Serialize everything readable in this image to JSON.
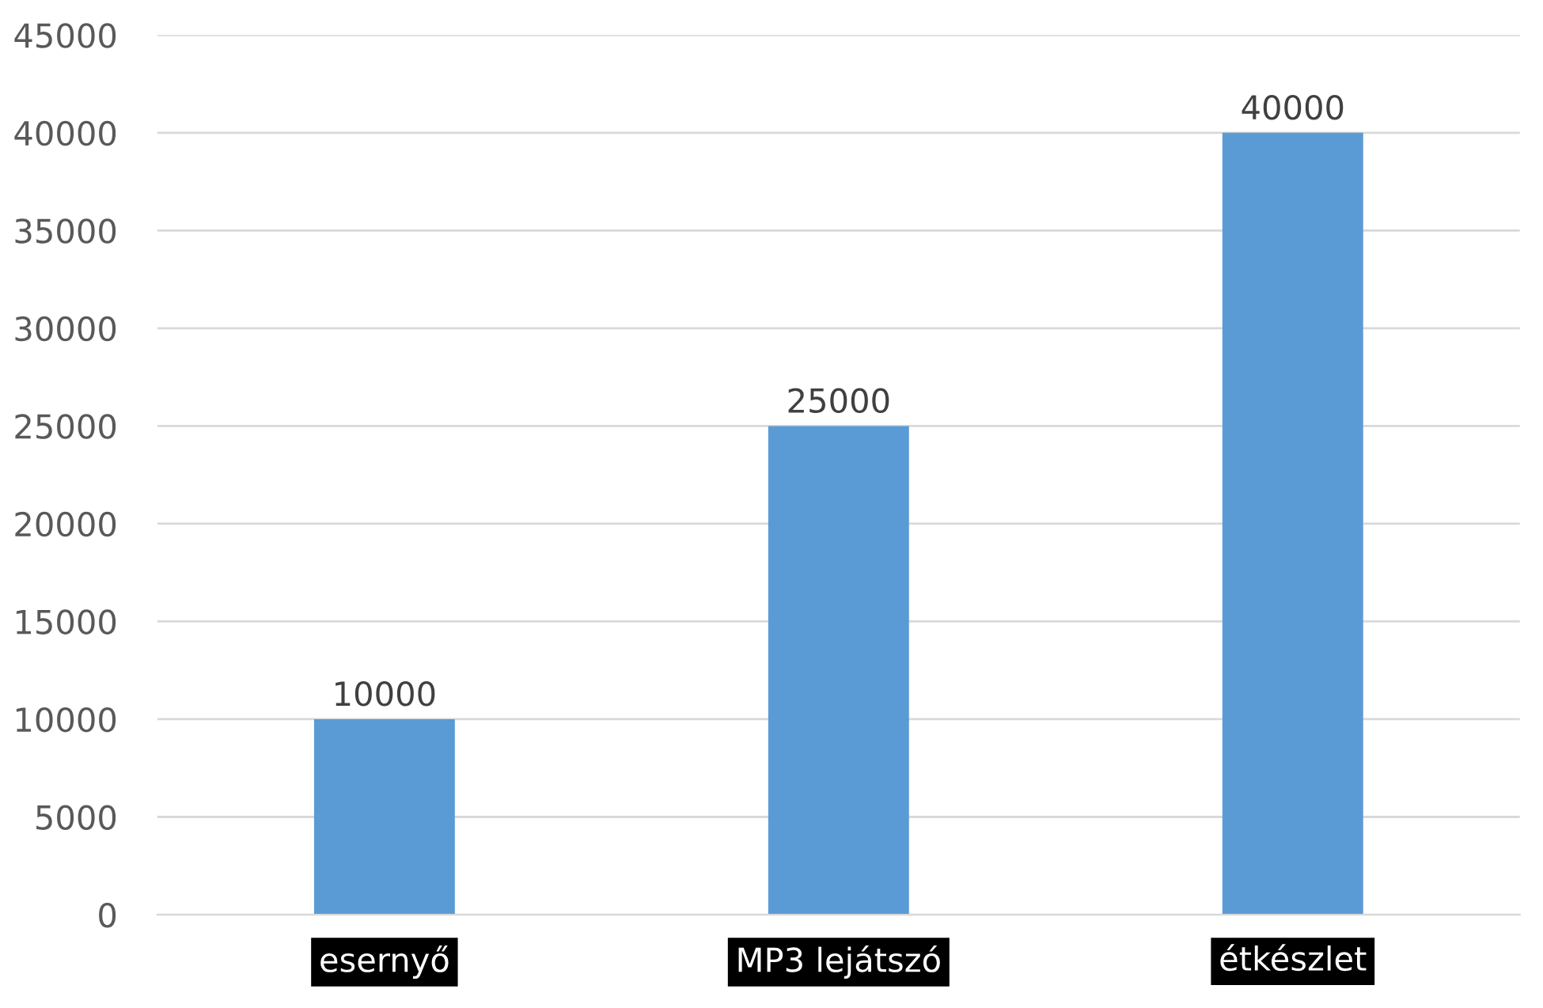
{
  "chart_data": {
    "type": "bar",
    "categories": [
      "esernyő",
      "MP3 lejátszó",
      "étkészlet"
    ],
    "values": [
      10000,
      25000,
      40000
    ],
    "color": "#5b9bd5",
    "ylim": [
      0,
      45000
    ],
    "yticks": [
      0,
      5000,
      10000,
      15000,
      20000,
      25000,
      30000,
      35000,
      40000,
      45000
    ],
    "grid": "y",
    "data_labels": true
  }
}
